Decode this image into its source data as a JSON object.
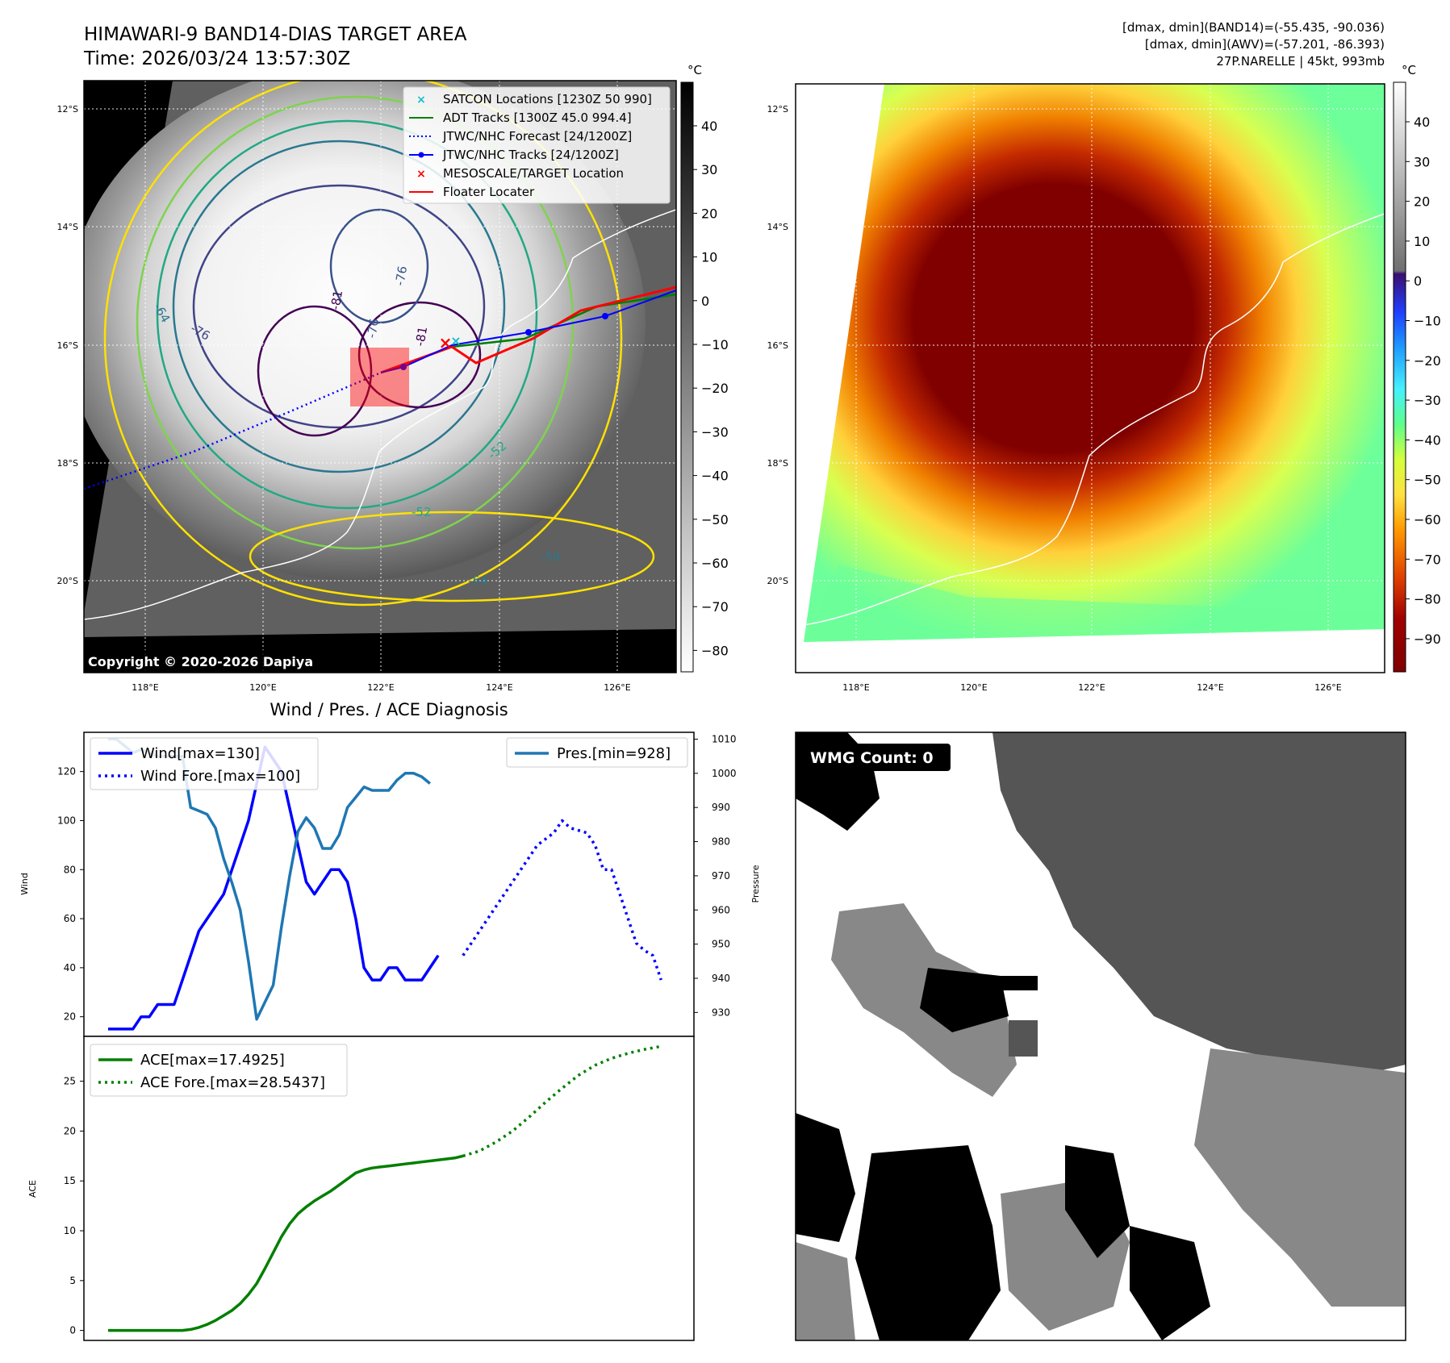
{
  "header": {
    "title_line1": "HIMAWARI-9 BAND14-DIAS TARGET AREA",
    "title_line2": "Time: 2026/03/24 13:57:30Z",
    "stats_line1": "[dmax, dmin](BAND14)=(-55.435, -90.036)",
    "stats_line2": "[dmax, dmin](AWV)=(-57.201, -86.393)",
    "stats_line3": "27P.NARELLE | 45kt, 993mb"
  },
  "map": {
    "lat_labels": [
      "12°S",
      "14°S",
      "16°S",
      "18°S",
      "20°S"
    ],
    "lon_labels": [
      "118°E",
      "120°E",
      "122°E",
      "124°E",
      "126°E"
    ],
    "copyright": "Copyright © 2020-2026 Dapiya",
    "contour_labels": [
      "-64",
      "-76",
      "-81",
      "-76",
      "-81",
      "-76",
      "-52",
      "-52",
      "-54",
      "-54"
    ]
  },
  "colorbar_gray": {
    "unit": "°C",
    "ticks": [
      "40",
      "30",
      "20",
      "10",
      "0",
      "−10",
      "−20",
      "−30",
      "−40",
      "−50",
      "−60",
      "−70",
      "−80"
    ]
  },
  "colorbar_color": {
    "unit": "°C",
    "ticks": [
      "40",
      "30",
      "20",
      "10",
      "0",
      "−10",
      "−20",
      "−30",
      "−40",
      "−50",
      "−60",
      "−70",
      "−80",
      "−90"
    ]
  },
  "legend_map": [
    {
      "label": "SATCON Locations [1230Z 50 990]",
      "color": "#17becf",
      "style": "x"
    },
    {
      "label": "ADT Tracks [1300Z 45.0 994.4]",
      "color": "#007f00",
      "style": "line"
    },
    {
      "label": "JTWC/NHC Forecast [24/1200Z]",
      "color": "#0000ff",
      "style": "dotted"
    },
    {
      "label": "JTWC/NHC Tracks [24/1200Z]",
      "color": "#0000ff",
      "style": "line-dot"
    },
    {
      "label": "MESOSCALE/TARGET Location",
      "color": "#ff0000",
      "style": "x"
    },
    {
      "label": "Floater Locater",
      "color": "#ff0000",
      "style": "line"
    }
  ],
  "wmg": {
    "label": "WMG Count: 0"
  },
  "chart_data": [
    {
      "type": "line",
      "title": "Wind / Pres. / ACE Diagnosis",
      "ylabel": "Wind",
      "ylabel_right": "Pressure",
      "ylim": [
        12,
        136
      ],
      "ylim_right": [
        923,
        1012
      ],
      "yticks": [
        20,
        40,
        60,
        80,
        100,
        120
      ],
      "yticks_right": [
        930,
        940,
        950,
        960,
        970,
        980,
        990,
        1000,
        1010
      ],
      "xlim": [
        0,
        70
      ],
      "series": [
        {
          "name": "Wind[max=130]",
          "color": "#0000ff",
          "style": "solid",
          "x": [
            0,
            1,
            2,
            3,
            4,
            5,
            6,
            7,
            8,
            9,
            10,
            11,
            12,
            13,
            14,
            15,
            16,
            17,
            18,
            19,
            20,
            21,
            22,
            23,
            24,
            25,
            26,
            27,
            28,
            29,
            30,
            31,
            32,
            33,
            34,
            35,
            36,
            37,
            38,
            39,
            40,
            41,
            42,
            43
          ],
          "values": [
            15,
            15,
            15,
            15,
            20,
            20,
            25,
            25,
            25,
            35,
            45,
            55,
            60,
            65,
            70,
            80,
            90,
            100,
            115,
            130,
            125,
            120,
            105,
            90,
            75,
            70,
            75,
            80,
            80,
            75,
            60,
            40,
            35,
            35,
            40,
            40,
            35,
            35,
            35,
            40,
            45,
            null,
            null,
            null
          ]
        },
        {
          "name": "Wind Fore.[max=100]",
          "color": "#0000ff",
          "style": "dotted",
          "x": [
            43,
            45,
            47,
            49,
            51,
            52,
            54,
            55,
            56,
            58,
            59,
            60,
            61,
            62,
            63,
            64,
            65,
            66,
            67
          ],
          "values": [
            45,
            55,
            65,
            75,
            85,
            90,
            95,
            100,
            97,
            95,
            90,
            80,
            80,
            70,
            60,
            50,
            47,
            45,
            35
          ]
        },
        {
          "name": "Pres.[min=928]",
          "color": "#1f77b4",
          "style": "solid",
          "axis": "right",
          "x": [
            0,
            1,
            2,
            3,
            4,
            5,
            6,
            7,
            8,
            9,
            10,
            11,
            12,
            13,
            14,
            15,
            16,
            17,
            18,
            19,
            20,
            21,
            22,
            23,
            24,
            25,
            26,
            27,
            28,
            29,
            30,
            31,
            32,
            33,
            34,
            35,
            36,
            37,
            38,
            39,
            40,
            41,
            42,
            43
          ],
          "values": [
            1010,
            1010,
            1008,
            1006,
            1007,
            1006,
            1005,
            1005,
            1005,
            1005,
            990,
            989,
            988,
            984,
            975,
            968,
            960,
            945,
            928,
            933,
            938,
            955,
            970,
            983,
            987,
            984,
            978,
            978,
            982,
            990,
            993,
            996,
            995,
            995,
            995,
            998,
            1000,
            1000,
            999,
            997,
            null,
            null,
            null,
            null
          ]
        }
      ],
      "legend": [
        "Wind[max=130]",
        "Wind Fore.[max=100]",
        "Pres.[min=928]"
      ]
    },
    {
      "type": "line",
      "ylabel": "ACE",
      "ylim": [
        -1,
        29.5
      ],
      "yticks": [
        0,
        5,
        10,
        15,
        20,
        25
      ],
      "xlim": [
        0,
        70
      ],
      "series": [
        {
          "name": "ACE[max=17.4925]",
          "color": "#007f00",
          "style": "solid",
          "x": [
            0,
            3,
            6,
            9,
            10,
            11,
            12,
            13,
            14,
            15,
            16,
            17,
            18,
            19,
            20,
            21,
            22,
            23,
            24,
            25,
            26,
            27,
            28,
            29,
            30,
            31,
            32,
            33,
            34,
            35,
            36,
            37,
            38,
            39,
            40,
            41,
            42,
            43
          ],
          "values": [
            0,
            0,
            0,
            0,
            0.1,
            0.3,
            0.6,
            1.0,
            1.5,
            2.0,
            2.7,
            3.6,
            4.7,
            6.2,
            7.8,
            9.4,
            10.7,
            11.7,
            12.4,
            13.0,
            13.5,
            14.0,
            14.6,
            15.2,
            15.8,
            16.1,
            16.3,
            16.4,
            16.5,
            16.6,
            16.7,
            16.8,
            16.9,
            17.0,
            17.1,
            17.2,
            17.3,
            17.5
          ]
        },
        {
          "name": "ACE Fore.[max=28.5437]",
          "color": "#007f00",
          "style": "dotted",
          "x": [
            43,
            45,
            47,
            49,
            51,
            53,
            55,
            57,
            59,
            61,
            63,
            65,
            67
          ],
          "values": [
            17.5,
            18.0,
            18.9,
            20.0,
            21.4,
            22.9,
            24.3,
            25.6,
            26.6,
            27.3,
            27.8,
            28.2,
            28.5
          ]
        }
      ],
      "legend": [
        "ACE[max=17.4925]",
        "ACE Fore.[max=28.5437]"
      ]
    }
  ]
}
